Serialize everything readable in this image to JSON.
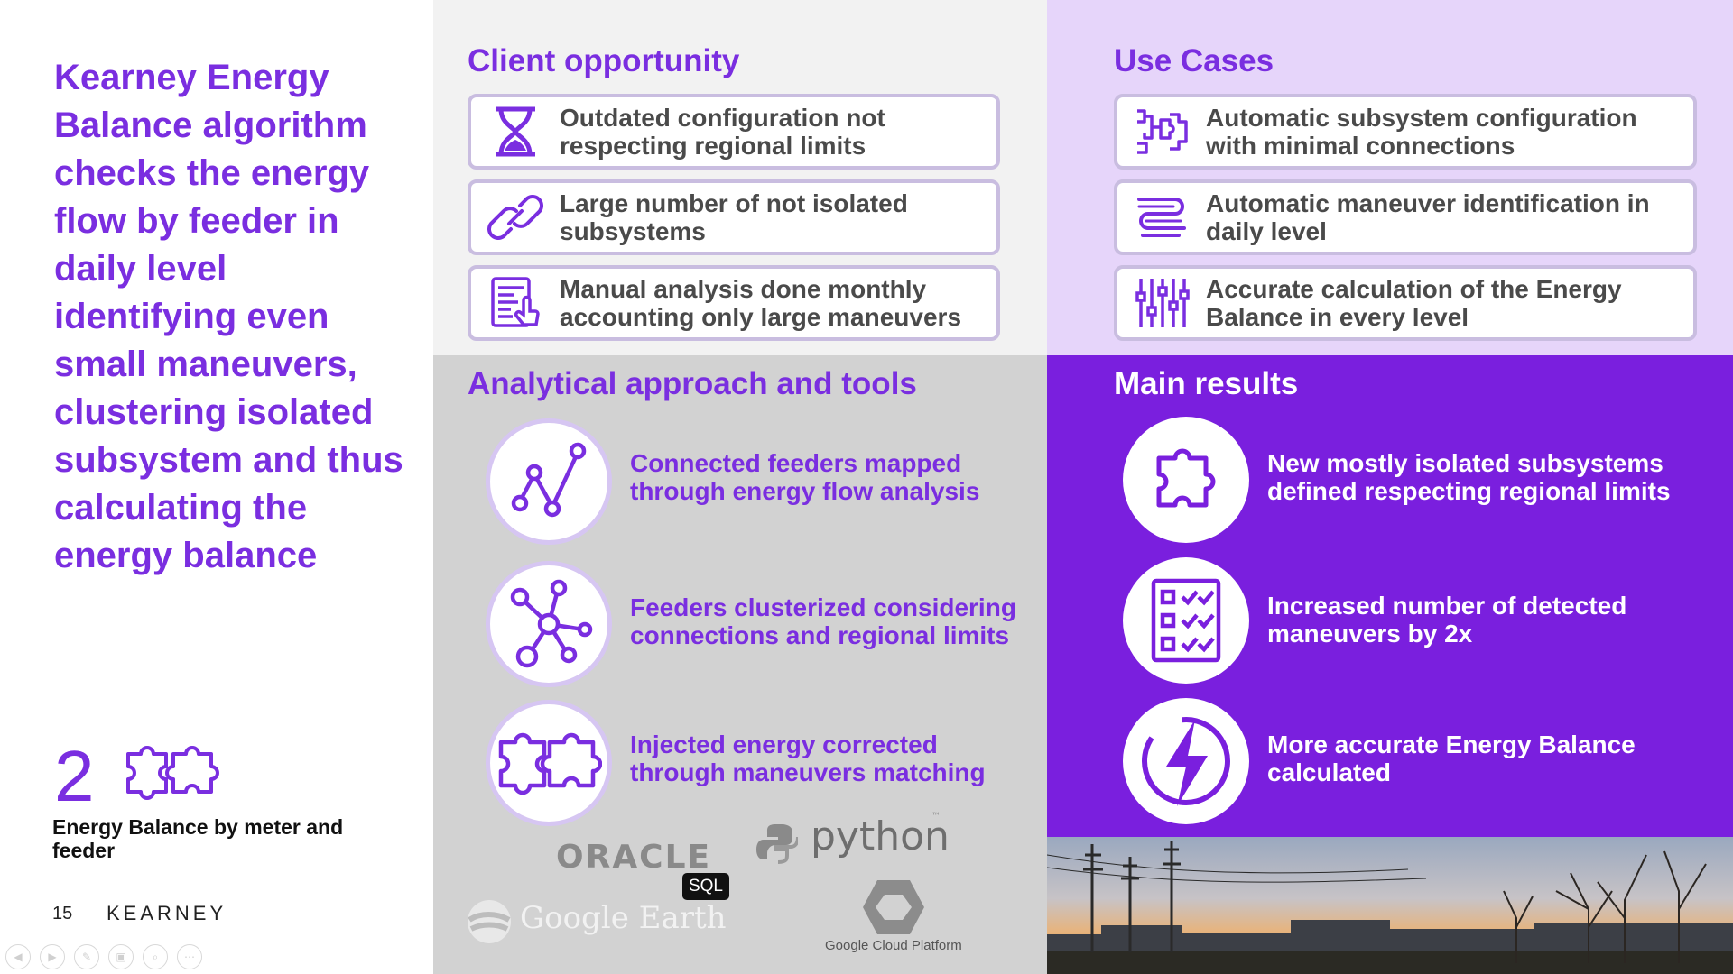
{
  "headline": "Kearney Energy Balance algorithm checks the energy flow by feeder in daily level identifying even small maneuvers, clustering isolated subsystem and thus calculating the energy balance",
  "deliverable": {
    "number": "2",
    "label": "Energy Balance by meter and feeder",
    "icon": "puzzle-pieces-icon"
  },
  "footer": {
    "page_number": "15",
    "brand": "KEARNEY"
  },
  "client_opportunity": {
    "title": "Client opportunity",
    "items": [
      {
        "icon": "hourglass-icon",
        "text": "Outdated configuration not respecting regional limits"
      },
      {
        "icon": "chain-link-icon",
        "text": "Large number of not isolated subsystems"
      },
      {
        "icon": "report-hand-icon",
        "text": "Manual analysis done monthly accounting only large maneuvers"
      }
    ]
  },
  "use_cases": {
    "title": "Use Cases",
    "items": [
      {
        "icon": "circuit-config-icon",
        "text": "Automatic subsystem configuration with minimal connections"
      },
      {
        "icon": "route-path-icon",
        "text": "Automatic maneuver identification in daily level"
      },
      {
        "icon": "sliders-icon",
        "text": "Accurate calculation of the Energy Balance in every level"
      }
    ]
  },
  "analytical": {
    "title": "Analytical approach and tools",
    "items": [
      {
        "icon": "line-graph-icon",
        "text": "Connected feeders mapped through energy flow analysis"
      },
      {
        "icon": "network-cluster-icon",
        "text": "Feeders clusterized considering connections and regional limits"
      },
      {
        "icon": "puzzle-pieces-icon",
        "text": "Injected energy corrected through maneuvers matching"
      }
    ],
    "tools": {
      "oracle": "ORACLE",
      "sql": "SQL",
      "python": "python",
      "tm": "™",
      "google_earth": "Google Earth",
      "gcp": "Google Cloud Platform"
    }
  },
  "main_results": {
    "title": "Main results",
    "items": [
      {
        "icon": "puzzle-piece-icon",
        "text": "New mostly isolated subsystems defined respecting regional limits"
      },
      {
        "icon": "checklist-icon",
        "text": "Increased number of detected maneuvers by 2x"
      },
      {
        "icon": "lightning-icon",
        "text": "More accurate Energy Balance calculated"
      }
    ]
  },
  "photo": "power-lines-at-dusk-photo",
  "nav_controls": [
    "back-icon",
    "forward-icon",
    "pen-icon",
    "slides-icon",
    "zoom-icon",
    "more-icon"
  ],
  "colors": {
    "purple": "#7a2ee0",
    "purple_dark": "#7a1fde",
    "lavender": "#e6d5fa",
    "pill_border": "#c9bde0"
  }
}
